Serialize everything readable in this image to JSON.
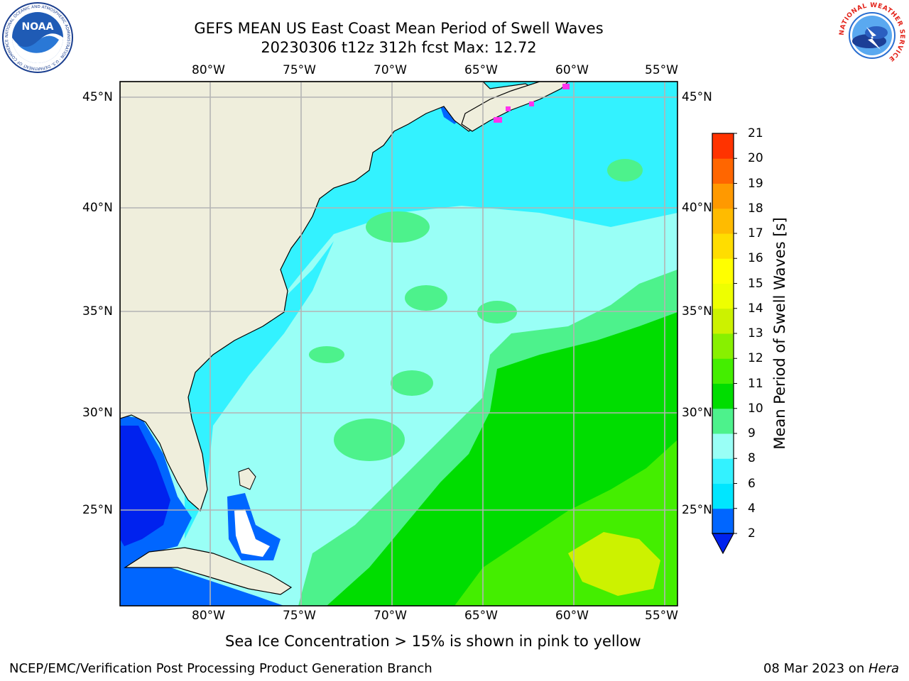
{
  "title": {
    "line1": "GEFS MEAN US East Coast Mean Period of Swell Waves",
    "line2": "20230306 t12z 312h fcst   Max: 12.72"
  },
  "logos": {
    "left": {
      "text": "NOAA",
      "ring_text": "NATIONAL OCEANIC AND ATMOSPHERIC ADMINISTRATION · U.S. DEPARTMENT OF COMMERCE"
    },
    "right": {
      "ring_text": "NATIONAL WEATHER SERVICE"
    }
  },
  "map": {
    "lon_labels": [
      "80°W",
      "75°W",
      "70°W",
      "65°W",
      "60°W",
      "55°W"
    ],
    "lat_labels": [
      "45°N",
      "40°N",
      "35°N",
      "30°N",
      "25°N"
    ],
    "colors": {
      "land": "#efeedc",
      "grid": "#b4b4b4",
      "coast": "#000000",
      "sea_ice": "#ff33ee"
    }
  },
  "colorbar": {
    "label": "Mean Period of Swell Waves [s]",
    "ticks": [
      "2",
      "4",
      "6",
      "8",
      "9",
      "10",
      "11",
      "12",
      "13",
      "14",
      "15",
      "16",
      "17",
      "18",
      "19",
      "20",
      "21"
    ],
    "colors": [
      "#0066ff",
      "#00e6ff",
      "#33f2ff",
      "#99fff6",
      "#4df28c",
      "#00dd00",
      "#44ee00",
      "#88f000",
      "#ccf200",
      "#eeff00",
      "#ffff00",
      "#ffdd00",
      "#ffbb00",
      "#ff9900",
      "#ff6600",
      "#ff3300"
    ],
    "extend_color": "#0022ee"
  },
  "note": "Sea Ice Concentration > 15% is shown in pink to yellow",
  "footer": {
    "left": "NCEP/EMC/Verification Post Processing Product Generation Branch",
    "right_date": "08 Mar 2023 on ",
    "right_host": "Hera"
  }
}
